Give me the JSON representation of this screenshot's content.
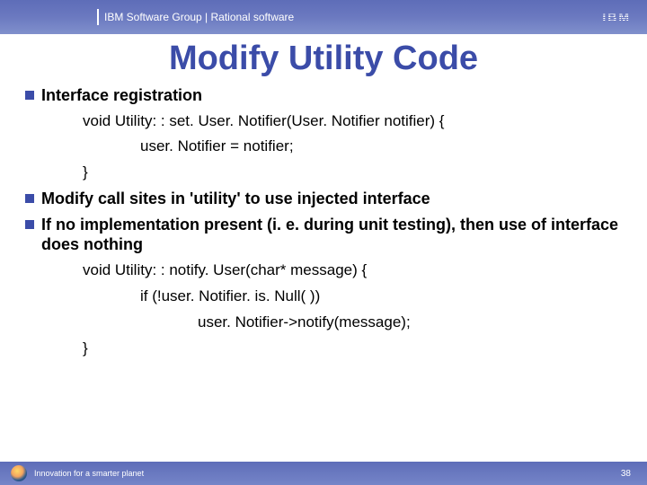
{
  "header": {
    "text": "IBM Software Group | Rational software",
    "logo_text": "IBM",
    "bg_gradient_top": "#5e6db8",
    "bg_gradient_bottom": "#8090cc",
    "text_color": "#ffffff"
  },
  "title": {
    "text": "Modify Utility Code",
    "color": "#3b4ca8",
    "fontsize": 38,
    "weight": "bold"
  },
  "bullets": [
    {
      "text": "Interface registration",
      "code": [
        {
          "indent": 1,
          "text": "void Utility: : set. User. Notifier(User. Notifier notifier) {"
        },
        {
          "indent": 2,
          "text": "user. Notifier = notifier;"
        },
        {
          "indent": 1,
          "text": "}"
        }
      ]
    },
    {
      "text": "Modify call sites in 'utility' to use injected interface",
      "code": []
    },
    {
      "text": "If no implementation present (i. e. during unit testing), then use of interface does nothing",
      "code": [
        {
          "indent": 1,
          "text": "void Utility: : notify. User(char* message) {"
        },
        {
          "indent": 2,
          "text": "if (!user. Notifier. is. Null( ))"
        },
        {
          "indent": 3,
          "text": "user. Notifier->notify(message);"
        },
        {
          "indent": 1,
          "text": "}"
        }
      ]
    }
  ],
  "footer": {
    "text": "Innovation for a smarter planet",
    "page_number": "38",
    "bg_gradient_top": "#5e6db8",
    "bg_gradient_bottom": "#7585c8",
    "text_color": "#ffffff"
  },
  "colors": {
    "bullet_marker": "#3b4ca8",
    "body_text": "#000000",
    "background": "#ffffff"
  },
  "typography": {
    "bullet_fontsize": 18,
    "code_fontsize": 17,
    "footer_fontsize": 9,
    "header_fontsize": 12
  }
}
